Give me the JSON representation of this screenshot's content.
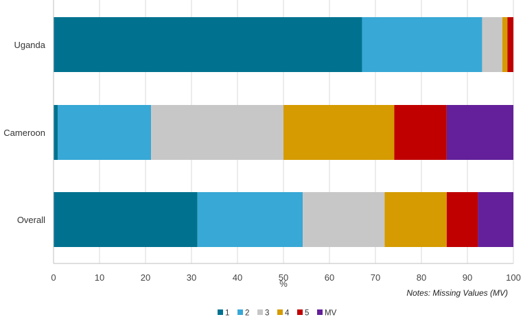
{
  "chart_data": {
    "type": "bar",
    "orientation": "horizontal",
    "stacked": true,
    "categories": [
      "Uganda",
      "Cameroon",
      "Overall"
    ],
    "series": [
      {
        "name": "1",
        "color": "#00728f",
        "values": [
          67.1,
          0.9,
          31.3
        ]
      },
      {
        "name": "2",
        "color": "#38a8d6",
        "values": [
          26.1,
          20.3,
          22.9
        ]
      },
      {
        "name": "3",
        "color": "#c8c7c7",
        "values": [
          4.4,
          28.8,
          17.8
        ]
      },
      {
        "name": "4",
        "color": "#d59b00",
        "values": [
          1.1,
          24.1,
          13.5
        ]
      },
      {
        "name": "5",
        "color": "#c00000",
        "values": [
          1.3,
          11.4,
          6.8
        ]
      },
      {
        "name": "MV",
        "color": "#63209a",
        "values": [
          0.0,
          14.5,
          7.7
        ]
      }
    ],
    "xlabel": "%",
    "xlim": [
      0,
      100
    ],
    "xticks": [
      0,
      10,
      20,
      30,
      40,
      50,
      60,
      70,
      80,
      90,
      100
    ],
    "grid": true,
    "legend_position": "bottom-center",
    "note": "Notes: Missing Values (MV)"
  }
}
